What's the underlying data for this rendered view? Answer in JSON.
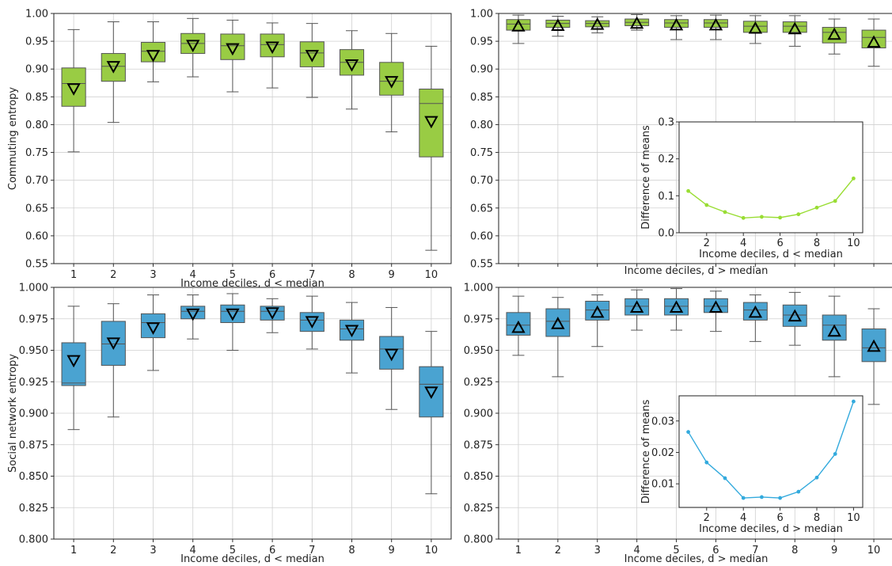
{
  "chart_data": [
    {
      "type": "box",
      "panel": "top-left",
      "xlabel": "Income deciles, d < median",
      "ylabel": "Commuting entropy",
      "categories": [
        "1",
        "2",
        "3",
        "4",
        "5",
        "6",
        "7",
        "8",
        "9",
        "10"
      ],
      "ylim": [
        0.55,
        1.0
      ],
      "yticks": [
        0.55,
        0.6,
        0.65,
        0.7,
        0.75,
        0.8,
        0.85,
        0.9,
        0.95,
        1.0
      ],
      "ytick_labels": [
        "0.55",
        "0.60",
        "0.65",
        "0.70",
        "0.75",
        "0.80",
        "0.85",
        "0.90",
        "0.95",
        "1.00"
      ],
      "color": "#99cc44",
      "mean_marker": "triangle-down",
      "grid": true,
      "boxes": [
        {
          "whislo": 0.751,
          "q1": 0.833,
          "med": 0.874,
          "q3": 0.902,
          "whishi": 0.971,
          "mean": 0.865
        },
        {
          "whislo": 0.804,
          "q1": 0.878,
          "med": 0.905,
          "q3": 0.928,
          "whishi": 0.985,
          "mean": 0.905
        },
        {
          "whislo": 0.877,
          "q1": 0.913,
          "med": 0.932,
          "q3": 0.948,
          "whishi": 0.985,
          "mean": 0.925
        },
        {
          "whislo": 0.886,
          "q1": 0.928,
          "med": 0.946,
          "q3": 0.964,
          "whishi": 0.991,
          "mean": 0.943
        },
        {
          "whislo": 0.859,
          "q1": 0.917,
          "med": 0.942,
          "q3": 0.963,
          "whishi": 0.988,
          "mean": 0.937
        },
        {
          "whislo": 0.866,
          "q1": 0.922,
          "med": 0.944,
          "q3": 0.963,
          "whishi": 0.983,
          "mean": 0.94
        },
        {
          "whislo": 0.849,
          "q1": 0.904,
          "med": 0.929,
          "q3": 0.949,
          "whishi": 0.982,
          "mean": 0.925
        },
        {
          "whislo": 0.828,
          "q1": 0.889,
          "med": 0.912,
          "q3": 0.935,
          "whishi": 0.969,
          "mean": 0.908
        },
        {
          "whislo": 0.787,
          "q1": 0.853,
          "med": 0.878,
          "q3": 0.912,
          "whishi": 0.964,
          "mean": 0.878
        },
        {
          "whislo": 0.574,
          "q1": 0.742,
          "med": 0.838,
          "q3": 0.864,
          "whishi": 0.941,
          "mean": 0.806
        }
      ]
    },
    {
      "type": "box",
      "panel": "top-right",
      "xlabel": "Income deciles, d > median",
      "ylabel": "",
      "categories": [
        "1",
        "2",
        "3",
        "4",
        "5",
        "6",
        "7",
        "8",
        "9",
        "10"
      ],
      "show_xtick_labels": false,
      "ylim": [
        0.55,
        1.0
      ],
      "yticks": [
        0.55,
        0.6,
        0.65,
        0.7,
        0.75,
        0.8,
        0.85,
        0.9,
        0.95,
        1.0
      ],
      "ytick_labels": [
        "0.55",
        "0.60",
        "0.65",
        "0.70",
        "0.75",
        "0.80",
        "0.85",
        "0.90",
        "0.95",
        "1.00"
      ],
      "color": "#99cc44",
      "mean_marker": "triangle-up",
      "grid": true,
      "boxes": [
        {
          "whislo": 0.946,
          "q1": 0.97,
          "med": 0.981,
          "q3": 0.989,
          "whishi": 0.997,
          "mean": 0.977
        },
        {
          "whislo": 0.959,
          "q1": 0.975,
          "med": 0.982,
          "q3": 0.988,
          "whishi": 0.995,
          "mean": 0.978
        },
        {
          "whislo": 0.965,
          "q1": 0.976,
          "med": 0.982,
          "q3": 0.987,
          "whishi": 0.994,
          "mean": 0.98
        },
        {
          "whislo": 0.97,
          "q1": 0.978,
          "med": 0.984,
          "q3": 0.99,
          "whishi": 0.998,
          "mean": 0.982
        },
        {
          "whislo": 0.953,
          "q1": 0.975,
          "med": 0.983,
          "q3": 0.989,
          "whishi": 0.996,
          "mean": 0.979
        },
        {
          "whislo": 0.953,
          "q1": 0.975,
          "med": 0.983,
          "q3": 0.989,
          "whishi": 0.997,
          "mean": 0.979
        },
        {
          "whislo": 0.946,
          "q1": 0.966,
          "med": 0.977,
          "q3": 0.986,
          "whishi": 0.996,
          "mean": 0.973
        },
        {
          "whislo": 0.941,
          "q1": 0.966,
          "med": 0.977,
          "q3": 0.985,
          "whishi": 0.996,
          "mean": 0.972
        },
        {
          "whislo": 0.927,
          "q1": 0.947,
          "med": 0.966,
          "q3": 0.975,
          "whishi": 0.99,
          "mean": 0.962
        },
        {
          "whislo": 0.905,
          "q1": 0.938,
          "med": 0.957,
          "q3": 0.97,
          "whishi": 0.99,
          "mean": 0.948
        }
      ],
      "inset": {
        "type": "line",
        "xlabel": "Income deciles, d < median",
        "ylabel": "Difference of means",
        "x": [
          1,
          2,
          3,
          4,
          5,
          6,
          7,
          8,
          9,
          10
        ],
        "y": [
          0.113,
          0.075,
          0.056,
          0.04,
          0.043,
          0.041,
          0.05,
          0.068,
          0.086,
          0.147
        ],
        "xlim": [
          0.5,
          10.5
        ],
        "ylim": [
          0.0,
          0.3
        ],
        "xticks": [
          2,
          4,
          6,
          8,
          10
        ],
        "yticks": [
          0.0,
          0.1,
          0.2,
          0.3
        ],
        "ytick_labels": [
          "0.0",
          "0.1",
          "0.2",
          "0.3"
        ],
        "color": "#99dd33"
      }
    },
    {
      "type": "box",
      "panel": "bottom-left",
      "xlabel": "Income deciles, d < median",
      "ylabel": "Social network entropy",
      "categories": [
        "1",
        "2",
        "3",
        "4",
        "5",
        "6",
        "7",
        "8",
        "9",
        "10"
      ],
      "ylim": [
        0.8,
        1.0
      ],
      "yticks": [
        0.8,
        0.825,
        0.85,
        0.875,
        0.9,
        0.925,
        0.95,
        0.975,
        1.0
      ],
      "ytick_labels": [
        "0.800",
        "0.825",
        "0.850",
        "0.875",
        "0.900",
        "0.925",
        "0.950",
        "0.975",
        "1.000"
      ],
      "color": "#4aa3d1",
      "mean_marker": "triangle-down",
      "grid": true,
      "boxes": [
        {
          "whislo": 0.887,
          "q1": 0.922,
          "med": 0.924,
          "q3": 0.956,
          "whishi": 0.985,
          "mean": 0.942
        },
        {
          "whislo": 0.897,
          "q1": 0.938,
          "med": 0.955,
          "q3": 0.973,
          "whishi": 0.987,
          "mean": 0.956
        },
        {
          "whislo": 0.934,
          "q1": 0.96,
          "med": 0.972,
          "q3": 0.979,
          "whishi": 0.994,
          "mean": 0.968
        },
        {
          "whislo": 0.959,
          "q1": 0.975,
          "med": 0.981,
          "q3": 0.985,
          "whishi": 0.994,
          "mean": 0.979
        },
        {
          "whislo": 0.95,
          "q1": 0.972,
          "med": 0.981,
          "q3": 0.986,
          "whishi": 0.995,
          "mean": 0.979
        },
        {
          "whislo": 0.964,
          "q1": 0.974,
          "med": 0.981,
          "q3": 0.985,
          "whishi": 0.991,
          "mean": 0.98
        },
        {
          "whislo": 0.951,
          "q1": 0.965,
          "med": 0.974,
          "q3": 0.98,
          "whishi": 0.993,
          "mean": 0.973
        },
        {
          "whislo": 0.932,
          "q1": 0.958,
          "med": 0.967,
          "q3": 0.974,
          "whishi": 0.988,
          "mean": 0.966
        },
        {
          "whislo": 0.903,
          "q1": 0.935,
          "med": 0.951,
          "q3": 0.961,
          "whishi": 0.984,
          "mean": 0.947
        },
        {
          "whislo": 0.836,
          "q1": 0.897,
          "med": 0.923,
          "q3": 0.937,
          "whishi": 0.965,
          "mean": 0.917
        }
      ]
    },
    {
      "type": "box",
      "panel": "bottom-right",
      "xlabel": "Income deciles, d > median",
      "ylabel": "",
      "categories": [
        "1",
        "2",
        "3",
        "4",
        "5",
        "6",
        "7",
        "8",
        "9",
        "10"
      ],
      "ylim": [
        0.8,
        1.0
      ],
      "yticks": [
        0.8,
        0.825,
        0.85,
        0.875,
        0.9,
        0.925,
        0.95,
        0.975,
        1.0
      ],
      "ytick_labels": [
        "0.800",
        "0.825",
        "0.850",
        "0.875",
        "0.900",
        "0.925",
        "0.950",
        "0.975",
        "1.000"
      ],
      "color": "#4aa3d1",
      "mean_marker": "triangle-up",
      "grid": true,
      "boxes": [
        {
          "whislo": 0.946,
          "q1": 0.962,
          "med": 0.97,
          "q3": 0.98,
          "whishi": 0.993,
          "mean": 0.968
        },
        {
          "whislo": 0.929,
          "q1": 0.961,
          "med": 0.973,
          "q3": 0.983,
          "whishi": 0.992,
          "mean": 0.971
        },
        {
          "whislo": 0.953,
          "q1": 0.974,
          "med": 0.982,
          "q3": 0.989,
          "whishi": 0.994,
          "mean": 0.98
        },
        {
          "whislo": 0.966,
          "q1": 0.978,
          "med": 0.985,
          "q3": 0.991,
          "whishi": 0.998,
          "mean": 0.984
        },
        {
          "whislo": 0.966,
          "q1": 0.978,
          "med": 0.985,
          "q3": 0.991,
          "whishi": 0.999,
          "mean": 0.984
        },
        {
          "whislo": 0.965,
          "q1": 0.98,
          "med": 0.985,
          "q3": 0.991,
          "whishi": 0.997,
          "mean": 0.984
        },
        {
          "whislo": 0.957,
          "q1": 0.974,
          "med": 0.982,
          "q3": 0.988,
          "whishi": 0.994,
          "mean": 0.98
        },
        {
          "whislo": 0.954,
          "q1": 0.969,
          "med": 0.978,
          "q3": 0.986,
          "whishi": 0.996,
          "mean": 0.977
        },
        {
          "whislo": 0.929,
          "q1": 0.958,
          "med": 0.97,
          "q3": 0.978,
          "whishi": 0.993,
          "mean": 0.965
        },
        {
          "whislo": 0.907,
          "q1": 0.941,
          "med": 0.952,
          "q3": 0.967,
          "whishi": 0.983,
          "mean": 0.953
        }
      ],
      "inset": {
        "type": "line",
        "xlabel": "Income deciles, d > median",
        "ylabel": "Difference of means",
        "x": [
          1,
          2,
          3,
          4,
          5,
          6,
          7,
          8,
          9,
          10
        ],
        "y": [
          0.0265,
          0.0168,
          0.0118,
          0.0055,
          0.0058,
          0.0055,
          0.0075,
          0.012,
          0.0195,
          0.0362
        ],
        "xlim": [
          0.5,
          10.5
        ],
        "ylim": [
          0.0025,
          0.038
        ],
        "xticks": [
          2,
          4,
          6,
          8,
          10
        ],
        "yticks": [
          0.01,
          0.02,
          0.03
        ],
        "ytick_labels": [
          "0.01",
          "0.02",
          "0.03"
        ],
        "color": "#33aadd"
      }
    }
  ]
}
